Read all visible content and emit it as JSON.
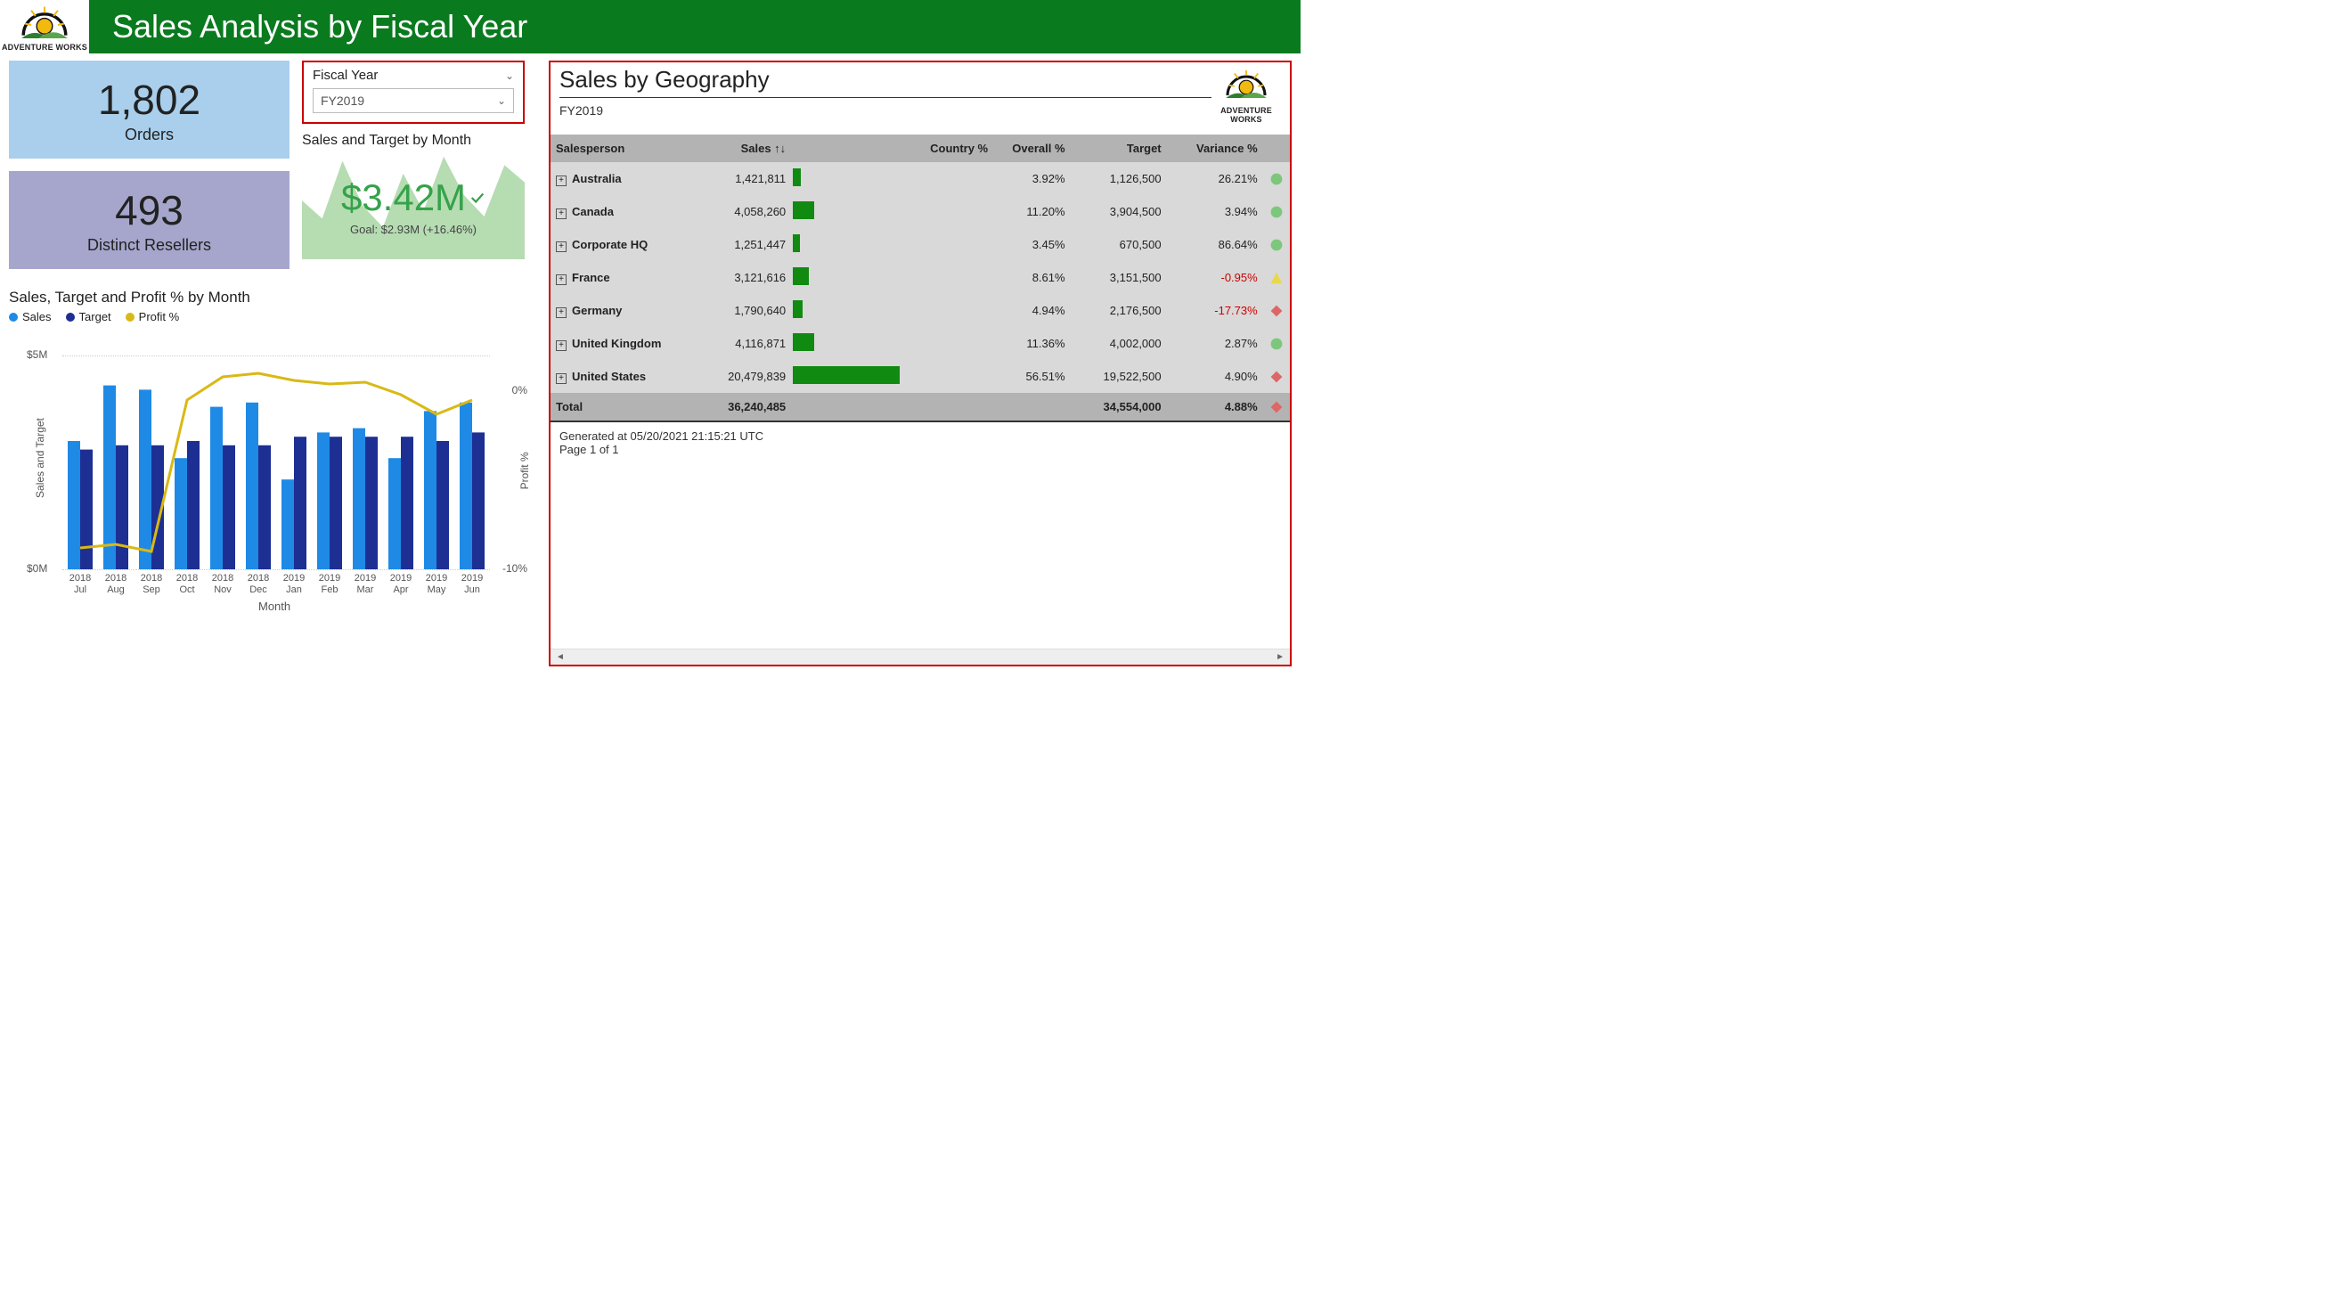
{
  "brand": {
    "name": "ADVENTURE WORKS",
    "logo_colors": {
      "sun": "#f2b90f",
      "sun_outline": "#111",
      "hills_back": "#2f7d2f",
      "hills_front": "#5aa64a",
      "arc": "#111"
    }
  },
  "header": {
    "title": "Sales Analysis by Fiscal Year",
    "bg": "#0a7a1e",
    "fg": "#ffffff"
  },
  "kpis": {
    "orders": {
      "value": "1,802",
      "label": "Orders",
      "bg": "#a9cfec"
    },
    "resellers": {
      "value": "493",
      "label": "Distinct Resellers",
      "bg": "#a6a6cc"
    }
  },
  "slicer": {
    "title": "Fiscal Year",
    "selected": "FY2019"
  },
  "sales_target_kpi": {
    "title": "Sales and Target by Month",
    "value": "$3.42M",
    "value_color": "#35a24a",
    "goal_text": "Goal: $2.93M (+16.46%)",
    "area_color": "#b6dcb2",
    "spark": [
      0.55,
      0.38,
      0.92,
      0.5,
      0.3,
      0.8,
      0.45,
      0.96,
      0.6,
      0.4,
      0.88,
      0.72
    ]
  },
  "combo_chart": {
    "title": "Sales, Target and Profit % by Month",
    "legend": {
      "sales": "Sales",
      "target": "Target",
      "profit": "Profit %"
    },
    "colors": {
      "sales": "#1f8ae6",
      "target": "#1d2f93",
      "profit": "#d9b915",
      "grid": "#cccccc"
    },
    "y_left": {
      "label": "Sales and Target",
      "ticks": [
        {
          "v": 0,
          "t": "$0M"
        },
        {
          "v": 5,
          "t": "$5M"
        }
      ],
      "max": 5
    },
    "y_right": {
      "label": "Profit %",
      "ticks": [
        {
          "v": -10,
          "t": "-10%"
        },
        {
          "v": 0,
          "t": "0%"
        }
      ],
      "min": -10,
      "max": 2
    },
    "x_label": "Month",
    "months": [
      {
        "m": "2018 Jul",
        "sales": 3.0,
        "target": 2.8,
        "profit": -8.8
      },
      {
        "m": "2018 Aug",
        "sales": 4.3,
        "target": 2.9,
        "profit": -8.6
      },
      {
        "m": "2018 Sep",
        "sales": 4.2,
        "target": 2.9,
        "profit": -9.0
      },
      {
        "m": "2018 Oct",
        "sales": 2.6,
        "target": 3.0,
        "profit": -0.5
      },
      {
        "m": "2018 Nov",
        "sales": 3.8,
        "target": 2.9,
        "profit": 0.8
      },
      {
        "m": "2018 Dec",
        "sales": 3.9,
        "target": 2.9,
        "profit": 1.0
      },
      {
        "m": "2019 Jan",
        "sales": 2.1,
        "target": 3.1,
        "profit": 0.6
      },
      {
        "m": "2019 Feb",
        "sales": 3.2,
        "target": 3.1,
        "profit": 0.4
      },
      {
        "m": "2019 Mar",
        "sales": 3.3,
        "target": 3.1,
        "profit": 0.5
      },
      {
        "m": "2019 Apr",
        "sales": 2.6,
        "target": 3.1,
        "profit": -0.2
      },
      {
        "m": "2019 May",
        "sales": 3.7,
        "target": 3.0,
        "profit": -1.3
      },
      {
        "m": "2019 Jun",
        "sales": 3.9,
        "target": 3.2,
        "profit": -0.5
      }
    ]
  },
  "geography": {
    "title": "Sales by Geography",
    "subtitle": "FY2019",
    "columns": [
      "Salesperson",
      "Sales ↑↓",
      "",
      "Country %",
      "Overall %",
      "Target",
      "Variance %",
      ""
    ],
    "bar_color": "#118a11",
    "max_sales": 20479839,
    "rows": [
      {
        "name": "Australia",
        "sales": "1,421,811",
        "sales_n": 1421811,
        "country": "",
        "overall": "3.92%",
        "target": "1,126,500",
        "variance": "26.21%",
        "neg": false,
        "ind": "green"
      },
      {
        "name": "Canada",
        "sales": "4,058,260",
        "sales_n": 4058260,
        "country": "",
        "overall": "11.20%",
        "target": "3,904,500",
        "variance": "3.94%",
        "neg": false,
        "ind": "green"
      },
      {
        "name": "Corporate HQ",
        "sales": "1,251,447",
        "sales_n": 1251447,
        "country": "",
        "overall": "3.45%",
        "target": "670,500",
        "variance": "86.64%",
        "neg": false,
        "ind": "green"
      },
      {
        "name": "France",
        "sales": "3,121,616",
        "sales_n": 3121616,
        "country": "",
        "overall": "8.61%",
        "target": "3,151,500",
        "variance": "-0.95%",
        "neg": true,
        "ind": "yellow"
      },
      {
        "name": "Germany",
        "sales": "1,790,640",
        "sales_n": 1790640,
        "country": "",
        "overall": "4.94%",
        "target": "2,176,500",
        "variance": "-17.73%",
        "neg": true,
        "ind": "red"
      },
      {
        "name": "United Kingdom",
        "sales": "4,116,871",
        "sales_n": 4116871,
        "country": "",
        "overall": "11.36%",
        "target": "4,002,000",
        "variance": "2.87%",
        "neg": false,
        "ind": "green"
      },
      {
        "name": "United States",
        "sales": "20,479,839",
        "sales_n": 20479839,
        "country": "",
        "overall": "56.51%",
        "target": "19,522,500",
        "variance": "4.90%",
        "neg": false,
        "ind": "red"
      }
    ],
    "total": {
      "name": "Total",
      "sales": "36,240,485",
      "target": "34,554,000",
      "variance": "4.88%",
      "ind": "red"
    },
    "footer_line1": "Generated at 05/20/2021 21:15:21 UTC",
    "footer_line2": "Page 1 of 1"
  }
}
